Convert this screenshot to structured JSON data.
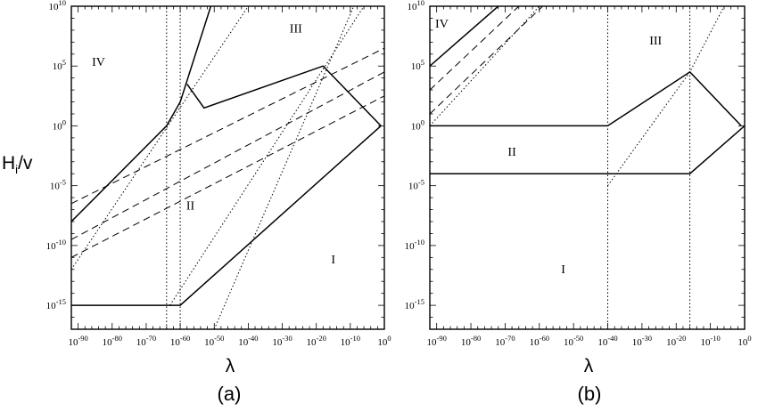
{
  "chart_data": [
    {
      "type": "line",
      "panel_label": "(a)",
      "xlabel": "λ",
      "ylabel": "H_i/v",
      "x_scale": "log",
      "y_scale": "log",
      "xlim_exp": [
        -92,
        0
      ],
      "ylim_exp": [
        -17,
        10
      ],
      "x_tick_exponents": [
        -90,
        -80,
        -70,
        -60,
        -50,
        -40,
        -30,
        -20,
        -10,
        0
      ],
      "x_tick_labels": [
        "10-90",
        "10-80",
        "10-70",
        "10-60",
        "10-50",
        "10-40",
        "10-30",
        "10-20",
        "10-10",
        "100"
      ],
      "y_tick_exponents": [
        -15,
        -10,
        -5,
        0,
        5,
        10
      ],
      "region_labels": [
        {
          "text": "IV",
          "x_exp": -84,
          "y_exp": 5.0
        },
        {
          "text": "III",
          "x_exp": -26,
          "y_exp": 7.8
        },
        {
          "text": "II",
          "x_exp": -57,
          "y_exp": -7.0
        },
        {
          "text": "I",
          "x_exp": -15,
          "y_exp": -11.5
        }
      ],
      "series": [
        {
          "style": "solid",
          "points_exp": [
            [
              -92,
              -8
            ],
            [
              -64,
              0
            ],
            [
              -60,
              2
            ],
            [
              -51,
              10
            ]
          ]
        },
        {
          "style": "solid",
          "points_exp": [
            [
              -58,
              3.5
            ],
            [
              -53,
              1.5
            ],
            [
              -18,
              5
            ],
            [
              -1,
              0
            ]
          ]
        },
        {
          "style": "solid",
          "points_exp": [
            [
              -92,
              -15
            ],
            [
              -60,
              -15
            ],
            [
              -1,
              0
            ]
          ]
        },
        {
          "style": "dashed",
          "points_exp": [
            [
              -92,
              -6.5
            ],
            [
              0,
              6.5
            ]
          ]
        },
        {
          "style": "dashed",
          "points_exp": [
            [
              -92,
              -9.5
            ],
            [
              0,
              4.5
            ]
          ]
        },
        {
          "style": "dashed",
          "points_exp": [
            [
              -92,
              -11
            ],
            [
              0,
              2.5
            ]
          ]
        },
        {
          "style": "dotted",
          "points_exp": [
            [
              -92,
              -12
            ],
            [
              -40,
              10
            ]
          ]
        },
        {
          "style": "dotted",
          "points_exp": [
            [
              -63,
              -15
            ],
            [
              -6,
              10
            ]
          ]
        },
        {
          "style": "dotted",
          "points_exp": [
            [
              -50,
              -17
            ],
            [
              -9,
              10
            ]
          ]
        },
        {
          "style": "dotted",
          "points_exp": [
            [
              -64,
              -17
            ],
            [
              -64,
              10
            ]
          ]
        },
        {
          "style": "dotted",
          "points_exp": [
            [
              -60,
              -17
            ],
            [
              -60,
              10
            ]
          ]
        }
      ]
    },
    {
      "type": "line",
      "panel_label": "(b)",
      "xlabel": "λ",
      "x_scale": "log",
      "y_scale": "log",
      "xlim_exp": [
        -92,
        0
      ],
      "ylim_exp": [
        -17,
        10
      ],
      "x_tick_exponents": [
        -90,
        -80,
        -70,
        -60,
        -50,
        -40,
        -30,
        -20,
        -10,
        0
      ],
      "x_tick_labels": [
        "10-90",
        "10-80",
        "10-70",
        "10-60",
        "10-50",
        "10-40",
        "10-30",
        "10-20",
        "10-10",
        "100"
      ],
      "y_tick_exponents": [
        -15,
        -10,
        -5,
        0,
        5,
        10
      ],
      "region_labels": [
        {
          "text": "IV",
          "x_exp": -88.5,
          "y_exp": 8.2
        },
        {
          "text": "III",
          "x_exp": -26,
          "y_exp": 6.8
        },
        {
          "text": "II",
          "x_exp": -68,
          "y_exp": -2.5
        },
        {
          "text": "I",
          "x_exp": -53,
          "y_exp": -12.3
        }
      ],
      "series": [
        {
          "style": "solid",
          "points_exp": [
            [
              -92,
              5
            ],
            [
              -72,
              10
            ]
          ]
        },
        {
          "style": "solid",
          "points_exp": [
            [
              -92,
              0
            ],
            [
              -40,
              0
            ],
            [
              -16,
              4.5
            ],
            [
              -1,
              0
            ]
          ]
        },
        {
          "style": "solid",
          "points_exp": [
            [
              -92,
              -4
            ],
            [
              -16,
              -4
            ],
            [
              0,
              0
            ]
          ]
        },
        {
          "style": "dashed",
          "points_exp": [
            [
              -92,
              3
            ],
            [
              -66,
              10
            ]
          ]
        },
        {
          "style": "dashed",
          "points_exp": [
            [
              -92,
              1
            ],
            [
              -59,
              10
            ]
          ]
        },
        {
          "style": "dotted",
          "points_exp": [
            [
              -92,
              0
            ],
            [
              -60,
              10
            ]
          ]
        },
        {
          "style": "dotted",
          "points_exp": [
            [
              -40,
              -5
            ],
            [
              -16,
              4.5
            ],
            [
              -6,
              10
            ]
          ]
        },
        {
          "style": "dotted",
          "points_exp": [
            [
              -40,
              -17
            ],
            [
              -40,
              10
            ]
          ]
        },
        {
          "style": "dotted",
          "points_exp": [
            [
              -16,
              -17
            ],
            [
              -16,
              10
            ]
          ]
        }
      ]
    }
  ]
}
